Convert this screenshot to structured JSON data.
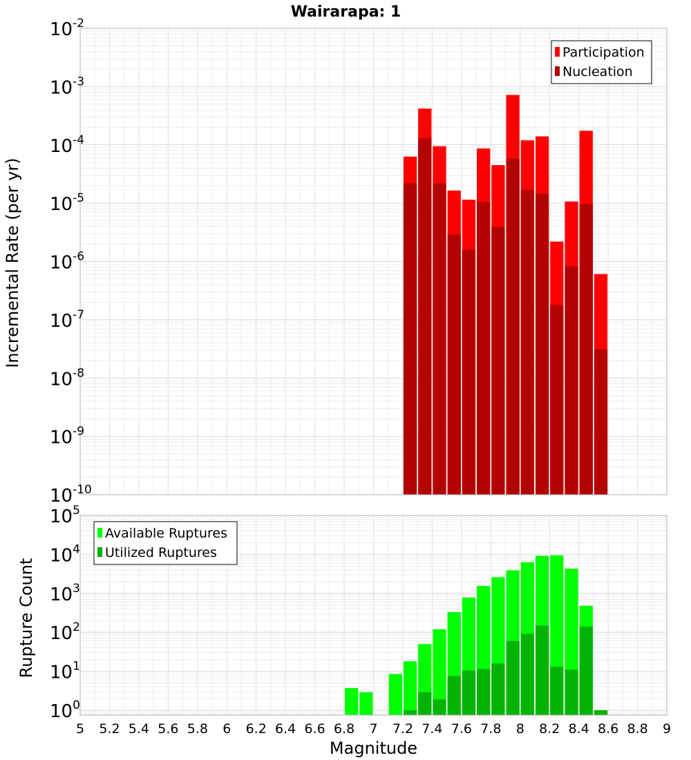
{
  "chart_data": [
    {
      "id": "top",
      "type": "bar",
      "title": "Wairarapa: 1",
      "xlabel": "",
      "ylabel": "Incremental Rate (per yr)",
      "yscale": "log",
      "xlim": [
        5,
        9
      ],
      "ylim": [
        1e-10,
        0.01
      ],
      "y_tick_exponents": [
        -10,
        -9,
        -8,
        -7,
        -6,
        -5,
        -4,
        -3,
        -2
      ],
      "bin_width": 0.1,
      "grid": true,
      "legend_position": "top-right",
      "colors": {
        "participation": "#ff0000",
        "nucleation": "#b30000"
      },
      "x": [
        7.25,
        7.35,
        7.45,
        7.55,
        7.65,
        7.75,
        7.85,
        7.95,
        8.05,
        8.15,
        8.25,
        8.35,
        8.45,
        8.55
      ],
      "series": [
        {
          "name": "Participation",
          "values": [
            6.3e-05,
            0.00042,
            9.5e-05,
            1.65e-05,
            1.15e-05,
            8.7e-05,
            4.5e-05,
            0.00072,
            0.00012,
            0.00014,
            2.2e-06,
            1.07e-05,
            0.000175,
            6.1e-07
          ]
        },
        {
          "name": "Nucleation",
          "values": [
            2.2e-05,
            0.00013,
            2.2e-05,
            2.9e-06,
            1.6e-06,
            1.05e-05,
            3.9e-06,
            5.8e-05,
            1.7e-05,
            1.45e-05,
            1.8e-07,
            8.3e-07,
            9.7e-06,
            3.1e-08
          ]
        }
      ]
    },
    {
      "id": "bottom",
      "type": "bar",
      "title": "",
      "xlabel": "Magnitude",
      "ylabel": "Rupture Count",
      "yscale": "log",
      "xlim": [
        5,
        9
      ],
      "ylim": [
        0.75,
        100000.0
      ],
      "y_tick_exponents": [
        0,
        1,
        2,
        3,
        4,
        5
      ],
      "x_ticks": [
        "5",
        "5.2",
        "5.4",
        "5.6",
        "5.8",
        "6",
        "6.2",
        "6.4",
        "6.6",
        "6.8",
        "7",
        "7.2",
        "7.4",
        "7.6",
        "7.8",
        "8",
        "8.2",
        "8.4",
        "8.6",
        "8.8",
        "9"
      ],
      "bin_width": 0.1,
      "grid": true,
      "legend_position": "top-left",
      "colors": {
        "available": "#00ff00",
        "utilized": "#00b300"
      },
      "x": [
        6.85,
        6.95,
        7.15,
        7.25,
        7.35,
        7.45,
        7.55,
        7.65,
        7.75,
        7.85,
        7.95,
        8.05,
        8.15,
        8.25,
        8.35,
        8.45,
        8.55
      ],
      "series": [
        {
          "name": "Available Ruptures",
          "values": [
            3.7,
            2.9,
            8.5,
            18,
            50,
            120,
            330,
            780,
            1550,
            2600,
            3900,
            6300,
            9200,
            9500,
            4300,
            480,
            1
          ]
        },
        {
          "name": "Utilized Ruptures",
          "values": [
            0,
            0,
            0,
            1,
            2.9,
            1.9,
            7.5,
            10.5,
            11.5,
            16,
            60,
            92,
            150,
            13,
            11,
            140,
            1
          ]
        }
      ]
    }
  ]
}
